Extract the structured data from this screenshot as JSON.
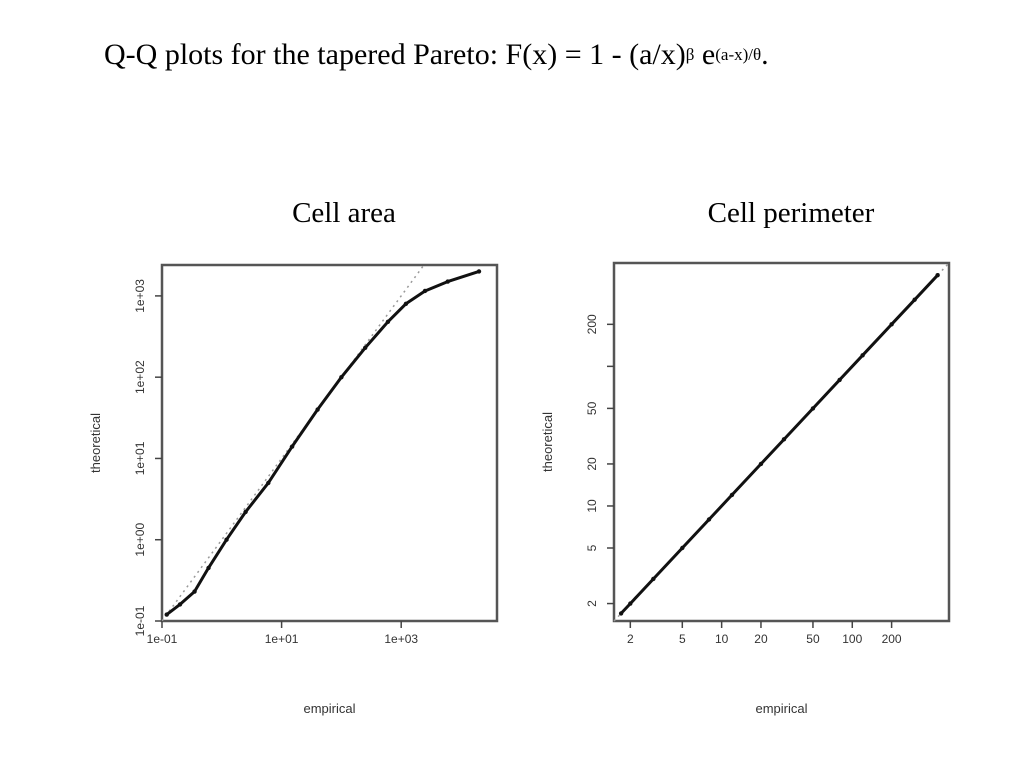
{
  "slide": {
    "title_prefix": "Q-Q plots for the tapered Pareto:  F(x) = 1 - (a/x)",
    "title_sup1": "β",
    "title_mid": " e",
    "title_sup2": "(a-x)/θ",
    "title_suffix": "."
  },
  "chart_data": [
    {
      "type": "scatter",
      "title": "Cell area",
      "xlabel": "empirical",
      "ylabel": "theoretical",
      "xscale": "log",
      "yscale": "log",
      "xlim": [
        0.1,
        40000
      ],
      "ylim": [
        0.1,
        2400
      ],
      "xticks": [
        0.1,
        10,
        1000
      ],
      "xtick_labels": [
        "1e-01",
        "1e+01",
        "1e+03"
      ],
      "yticks": [
        0.1,
        1,
        10,
        100,
        1000
      ],
      "ytick_labels": [
        "1e-01",
        "1e+00",
        "1e+01",
        "1e+02",
        "1e+03"
      ],
      "grid": false,
      "series": [
        {
          "x": [
            0.12,
            0.2,
            0.35,
            0.6,
            1.2,
            2.5,
            6,
            15,
            40,
            100,
            250,
            600,
            1200,
            2500,
            6000,
            20000
          ],
          "y": [
            0.12,
            0.16,
            0.23,
            0.45,
            1.0,
            2.2,
            5.0,
            14,
            40,
            100,
            230,
            480,
            800,
            1150,
            1500,
            2000
          ]
        }
      ]
    },
    {
      "type": "scatter",
      "title": "Cell perimeter",
      "xlabel": "empirical",
      "ylabel": "theoretical",
      "xscale": "log",
      "yscale": "log",
      "xlim": [
        1.5,
        550
      ],
      "ylim": [
        1.5,
        550
      ],
      "xticks": [
        2,
        5,
        10,
        20,
        50,
        100,
        200
      ],
      "xtick_labels": [
        "2",
        "5",
        "10",
        "20",
        "50",
        "100",
        "200"
      ],
      "yticks": [
        2,
        5,
        10,
        20,
        50,
        100,
        200
      ],
      "ytick_labels": [
        "2",
        "5",
        "10",
        "20",
        "50",
        "",
        "200"
      ],
      "grid": false,
      "series": [
        {
          "x": [
            1.7,
            2,
            3,
            5,
            8,
            12,
            20,
            30,
            50,
            80,
            120,
            200,
            300,
            450
          ],
          "y": [
            1.7,
            2,
            3,
            5,
            8,
            12,
            20,
            30,
            50,
            80,
            120,
            200,
            300,
            450
          ]
        }
      ]
    }
  ]
}
